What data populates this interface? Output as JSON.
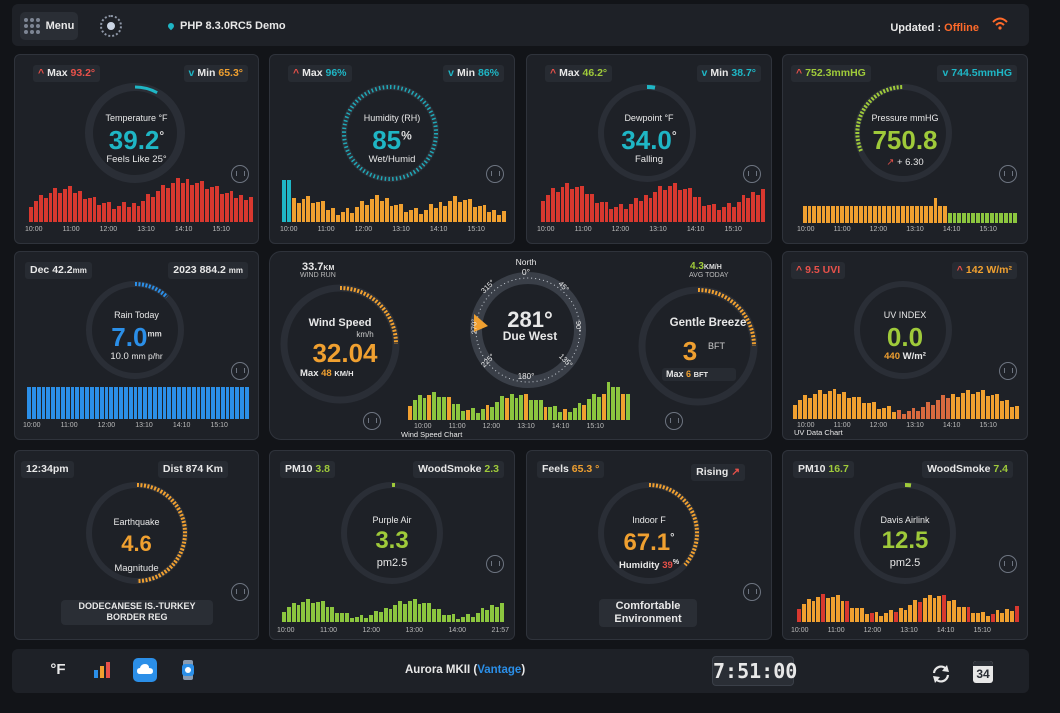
{
  "header": {
    "menu_label": "Menu",
    "site": "PHP 8.3.0RC5 Demo",
    "updated_label": "Updated :",
    "status": "Offline"
  },
  "temp": {
    "max_label": "Max",
    "max": "93.2°",
    "min_label": "Min",
    "min": "65.3°",
    "title": "Temperature °F",
    "value": "39.2",
    "unit": "°",
    "sub": "Feels Like 25°",
    "times": [
      "10:00",
      "11:00",
      "12:00",
      "13:10",
      "14:10",
      "15:10"
    ]
  },
  "humidity": {
    "max_label": "Max",
    "max": "96%",
    "min_label": "Min",
    "min": "86%",
    "title": "Humidity (RH)",
    "value": "85",
    "unit": "%",
    "sub": "Wet/Humid",
    "times": [
      "10:00",
      "11:00",
      "12:00",
      "13:10",
      "14:10",
      "15:10"
    ]
  },
  "dewpoint": {
    "max_label": "Max",
    "max": "46.2°",
    "min_label": "Min",
    "min": "38.7°",
    "title": "Dewpoint °F",
    "value": "34.0",
    "unit": "°",
    "sub": "Falling",
    "times": [
      "10:00",
      "11:00",
      "12:00",
      "13:10",
      "14:10",
      "15:10"
    ]
  },
  "pressure": {
    "high": "752.3mmHG",
    "low": "744.5mmHG",
    "title": "Pressure mmHG",
    "value": "750.8",
    "trend": "+ 6.30",
    "times": [
      "10:00",
      "11:00",
      "12:00",
      "13:10",
      "14:10",
      "15:10"
    ]
  },
  "rain": {
    "dec_label": "Dec",
    "dec": "42.2",
    "dec_unit": "mm",
    "year_label": "2023",
    "year": "884.2",
    "year_unit": "mm",
    "title": "Rain Today",
    "value": "7.0",
    "unit": "mm",
    "rate": "10.0",
    "rate_unit": "mm p/hr",
    "times": [
      "10:00",
      "11:00",
      "12:00",
      "13:10",
      "14:10",
      "15:10"
    ]
  },
  "wind": {
    "run_value": "33.7",
    "run_unit": "KM",
    "run_label": "WIND RUN",
    "title": "Wind Speed",
    "unit": "km/h",
    "value": "32.04",
    "max_label": "Max",
    "max": "48",
    "max_unit": "KM/H",
    "compass_north": "North",
    "compass_zero": "0°",
    "deg_315": "315°",
    "deg_45": "45°",
    "deg_270": "270°",
    "deg_90": "90°",
    "deg_225": "225°",
    "deg_135": "135°",
    "deg_180": "180°",
    "direction": "281°",
    "direction_text": "Due West",
    "avg_value": "4.3",
    "avg_unit": "KM/H",
    "avg_label": "AVG TODAY",
    "breeze": "Gentle Breeze",
    "bft": "3",
    "bft_unit": "BFT",
    "bft_max_label": "Max",
    "bft_max": "6",
    "bft_max_unit": "BFT",
    "chart_label": "Wind Speed Chart",
    "times": [
      "10:00",
      "11:00",
      "12:00",
      "13:10",
      "14:10",
      "15:10"
    ]
  },
  "uv": {
    "uvi": "9.5 UVI",
    "solar": "142 W/m²",
    "title": "UV INDEX",
    "value": "0.0",
    "solar_now": "440",
    "solar_unit": "W/m²",
    "chart_label": "UV Data Chart",
    "times": [
      "10:00",
      "11:00",
      "12:00",
      "13:10",
      "14:10",
      "15:10"
    ]
  },
  "quake": {
    "time": "12:34pm",
    "dist": "Dist 874 Km",
    "title": "Earthquake",
    "value": "4.6",
    "sub": "Magnitude",
    "location": "DODECANESE IS.-TURKEY BORDER REG"
  },
  "purpleair": {
    "pm10_label": "PM10",
    "pm10": "3.8",
    "smoke_label": "WoodSmoke",
    "smoke": "2.3",
    "title": "Purple Air",
    "value": "3.3",
    "sub": "pm2.5",
    "times": [
      "10:00",
      "11:00",
      "12:00",
      "13:00",
      "14:00",
      "21:57"
    ]
  },
  "indoor": {
    "feels_label": "Feels",
    "feels": "65.3 °",
    "trend": "Rising",
    "title": "Indoor F",
    "value": "67.1",
    "unit": "°",
    "hum_label": "Humidity",
    "hum": "39",
    "hum_unit": "%",
    "status": "Comfortable Environment"
  },
  "davis": {
    "pm10_label": "PM10",
    "pm10": "16.7",
    "smoke_label": "WoodSmoke",
    "smoke": "7.4",
    "title": "Davis Airlink",
    "value": "12.5",
    "sub": "pm2.5",
    "times": [
      "10:00",
      "11:00",
      "12:00",
      "13:10",
      "14:10",
      "15:10"
    ]
  },
  "footer": {
    "unit_label": "°F",
    "station": "Aurora MKII (",
    "station_model": "Vantage",
    "station_end": ")",
    "clock": "7:51:00",
    "calendar_day": "34"
  },
  "colors": {
    "accent_cyan": "#1fb6c5",
    "accent_orange": "#f0a030",
    "accent_red": "#e8514a",
    "accent_green": "#9fca3a",
    "accent_blue": "#2b8fe8"
  }
}
